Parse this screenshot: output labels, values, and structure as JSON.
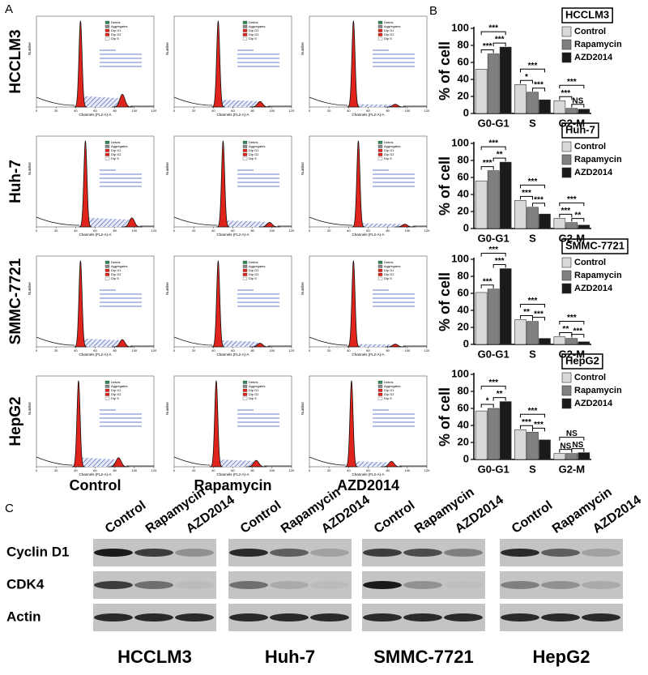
{
  "panel_labels": [
    "A",
    "B",
    "C"
  ],
  "flow": {
    "cell_lines": [
      "HCCLM3",
      "Huh-7",
      "SMMC-7721",
      "HepG2"
    ],
    "conditions": [
      "Control",
      "Rapamycin",
      "AZD2014"
    ],
    "x_axis_label": "Channels (FL2-A)-A",
    "y_axis_label": "Number",
    "xticks": [
      0,
      20,
      40,
      60,
      80,
      100,
      120
    ],
    "legend": [
      "Debris",
      "Aggregates",
      "Dip G1",
      "Dip G2",
      "Dip S"
    ]
  },
  "chart_data": [
    {
      "type": "bar",
      "title": "HCCLM3",
      "y_label": "% of cell",
      "categories": [
        "G0-G1",
        "S",
        "G2-M"
      ],
      "series": [
        {
          "name": "Control",
          "color": "#d9d9d9",
          "values": [
            52,
            34,
            15
          ]
        },
        {
          "name": "Rapamycin",
          "color": "#808080",
          "values": [
            70,
            25,
            6
          ]
        },
        {
          "name": "AZD2014",
          "color": "#1a1a1a",
          "values": [
            78,
            16,
            5
          ]
        }
      ],
      "ylim": [
        0,
        100
      ],
      "yticks": [
        0,
        20,
        40,
        60,
        80,
        100
      ],
      "significance": [
        [
          "***",
          "***",
          "***"
        ],
        [
          "*",
          "***",
          "***"
        ],
        [
          "***",
          "NS",
          "***"
        ]
      ]
    },
    {
      "type": "bar",
      "title": "Huh-7",
      "y_label": "% of cell",
      "categories": [
        "G0-G1",
        "S",
        "G2-M"
      ],
      "series": [
        {
          "name": "Control",
          "color": "#d9d9d9",
          "values": [
            56,
            33,
            12
          ]
        },
        {
          "name": "Rapamycin",
          "color": "#808080",
          "values": [
            68,
            25,
            7
          ]
        },
        {
          "name": "AZD2014",
          "color": "#1a1a1a",
          "values": [
            78,
            17,
            4
          ]
        }
      ],
      "ylim": [
        0,
        100
      ],
      "yticks": [
        0,
        20,
        40,
        60,
        80,
        100
      ],
      "significance": [
        [
          "***",
          "**",
          "***"
        ],
        [
          "***",
          "***",
          "***"
        ],
        [
          "***",
          "**",
          "***"
        ]
      ]
    },
    {
      "type": "bar",
      "title": "SMMC-7721",
      "y_label": "% of cell",
      "categories": [
        "G0-G1",
        "S",
        "G2-M"
      ],
      "series": [
        {
          "name": "Control",
          "color": "#d9d9d9",
          "values": [
            61,
            29,
            9
          ]
        },
        {
          "name": "Rapamycin",
          "color": "#808080",
          "values": [
            65,
            27,
            7
          ]
        },
        {
          "name": "AZD2014",
          "color": "#1a1a1a",
          "values": [
            89,
            7,
            3
          ]
        }
      ],
      "ylim": [
        0,
        100
      ],
      "yticks": [
        0,
        20,
        40,
        60,
        80,
        100
      ],
      "significance": [
        [
          "***",
          "***",
          "***"
        ],
        [
          "**",
          "***",
          "***"
        ],
        [
          "**",
          "***",
          "***"
        ]
      ]
    },
    {
      "type": "bar",
      "title": "HepG2",
      "y_label": "% of cell",
      "categories": [
        "G0-G1",
        "S",
        "G2-M"
      ],
      "series": [
        {
          "name": "Control",
          "color": "#d9d9d9",
          "values": [
            57,
            35,
            7
          ]
        },
        {
          "name": "Rapamycin",
          "color": "#808080",
          "values": [
            60,
            32,
            7
          ]
        },
        {
          "name": "AZD2014",
          "color": "#1a1a1a",
          "values": [
            68,
            23,
            8
          ]
        }
      ],
      "ylim": [
        0,
        100
      ],
      "yticks": [
        0,
        20,
        40,
        60,
        80,
        100
      ],
      "significance": [
        [
          "*",
          "**",
          "***"
        ],
        [
          "***",
          "***",
          "***"
        ],
        [
          "NS",
          "NS",
          "NS"
        ]
      ]
    }
  ],
  "blot": {
    "lanes": [
      "Control",
      "Rapamycin",
      "AZD2014"
    ],
    "proteins": [
      "Cyclin D1",
      "CDK4",
      "Actin"
    ],
    "cell_lines": [
      "HCCLM3",
      "Huh-7",
      "SMMC-7721",
      "HepG2"
    ]
  }
}
